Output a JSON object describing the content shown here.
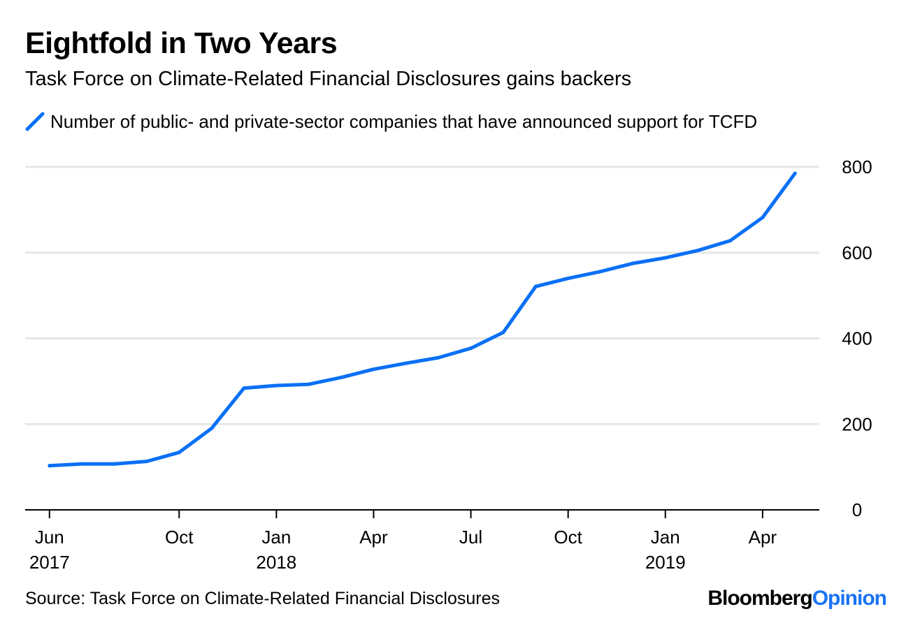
{
  "header": {
    "title": "Eightfold in Two Years",
    "subtitle": "Task Force on Climate-Related Financial Disclosures gains backers"
  },
  "legend": {
    "label": "Number of public- and private-sector companies that have announced support for TCFD",
    "icon": "line-swatch-icon"
  },
  "footer": {
    "source": "Source: Task Force on Climate-Related Financial Disclosures",
    "brand_main": "Bloomberg",
    "brand_accent": "Opinion"
  },
  "colors": {
    "series": "#0a70f5",
    "grid": "#e6e6e6",
    "axis": "#000000",
    "brand_accent": "#1a73f5"
  },
  "chart_data": {
    "type": "line",
    "title": "Eightfold in Two Years",
    "subtitle": "Task Force on Climate-Related Financial Disclosures gains backers",
    "xlabel": "",
    "ylabel": "",
    "ylim": [
      0,
      800
    ],
    "yticks": [
      0,
      200,
      400,
      600,
      800
    ],
    "y_axis_side": "right",
    "grid": true,
    "legend_position": "top-left",
    "x_ticks": [
      {
        "month": 0,
        "line1": "Jun",
        "line2": "2017"
      },
      {
        "month": 4,
        "line1": "Oct",
        "line2": ""
      },
      {
        "month": 7,
        "line1": "Jan",
        "line2": "2018"
      },
      {
        "month": 10,
        "line1": "Apr",
        "line2": ""
      },
      {
        "month": 13,
        "line1": "Jul",
        "line2": ""
      },
      {
        "month": 16,
        "line1": "Oct",
        "line2": ""
      },
      {
        "month": 19,
        "line1": "Jan",
        "line2": "2019"
      },
      {
        "month": 22,
        "line1": "Apr",
        "line2": ""
      }
    ],
    "x_range_months": [
      -0.75,
      23.75
    ],
    "series": [
      {
        "name": "Number of public- and private-sector companies that have announced support for TCFD",
        "x_months": [
          0,
          1,
          2,
          3,
          4,
          5,
          6,
          7,
          8,
          9,
          10,
          11,
          12,
          13,
          14,
          15,
          16,
          17,
          18,
          19,
          20,
          21,
          22,
          23
        ],
        "values": [
          103,
          107,
          107,
          113,
          134,
          190,
          284,
          290,
          293,
          309,
          328,
          342,
          355,
          377,
          414,
          521,
          540,
          556,
          575,
          588,
          605,
          628,
          682,
          785
        ]
      }
    ]
  }
}
